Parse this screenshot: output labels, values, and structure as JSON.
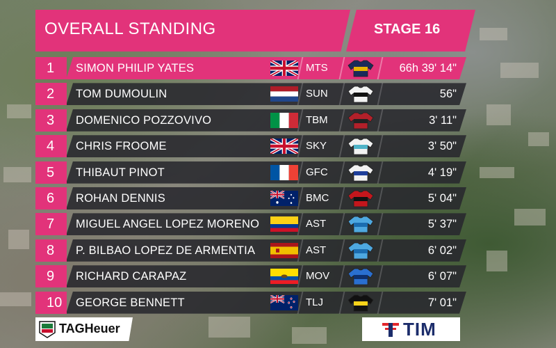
{
  "header": {
    "title": "OVERALL STANDING",
    "stage": "STAGE 16"
  },
  "standings": [
    {
      "pos": "1",
      "name": "SIMON PHILIP YATES",
      "flag": "gb-flag",
      "team": "MTS",
      "jersey": "mts-jersey",
      "time": "66h 39' 14\""
    },
    {
      "pos": "2",
      "name": "TOM DUMOULIN",
      "flag": "nl-flag",
      "team": "SUN",
      "jersey": "sun-jersey",
      "time": "56\""
    },
    {
      "pos": "3",
      "name": "DOMENICO POZZOVIVO",
      "flag": "it-flag",
      "team": "TBM",
      "jersey": "tbm-jersey",
      "time": "3' 11\""
    },
    {
      "pos": "4",
      "name": "CHRIS FROOME",
      "flag": "gb-flag",
      "team": "SKY",
      "jersey": "sky-jersey",
      "time": "3' 50\""
    },
    {
      "pos": "5",
      "name": "THIBAUT PINOT",
      "flag": "fr-flag",
      "team": "GFC",
      "jersey": "gfc-jersey",
      "time": "4' 19\""
    },
    {
      "pos": "6",
      "name": "ROHAN DENNIS",
      "flag": "au-flag",
      "team": "BMC",
      "jersey": "bmc-jersey",
      "time": "5' 04\""
    },
    {
      "pos": "7",
      "name": "MIGUEL ANGEL LOPEZ MORENO",
      "flag": "co-flag",
      "team": "AST",
      "jersey": "ast-jersey",
      "time": "5' 37\""
    },
    {
      "pos": "8",
      "name": "P. BILBAO LOPEZ DE ARMENTIA",
      "flag": "es-flag",
      "team": "AST",
      "jersey": "ast-jersey",
      "time": "6' 02\""
    },
    {
      "pos": "9",
      "name": "RICHARD CARAPAZ",
      "flag": "ec-flag",
      "team": "MOV",
      "jersey": "mov-jersey",
      "time": "6' 07\""
    },
    {
      "pos": "10",
      "name": "GEORGE BENNETT",
      "flag": "nz-flag",
      "team": "TLJ",
      "jersey": "tlj-jersey",
      "time": "7' 01\""
    }
  ],
  "sponsors": {
    "left": "TAGHeuer",
    "right": "TIM"
  },
  "colors": {
    "accent": "#e2337a",
    "row_bg": "#28282e",
    "tim_blue": "#1c2d6b"
  }
}
